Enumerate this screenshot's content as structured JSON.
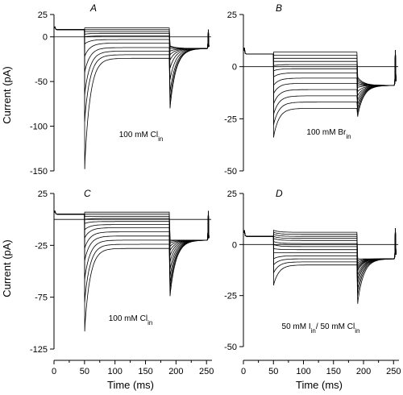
{
  "figure": {
    "x_axis_title": "Time (ms)",
    "y_axis_title": "Current (pA)"
  },
  "chart_data": [
    {
      "type": "line",
      "panel": "A",
      "condition": {
        "main": "100 mM Cl",
        "sub": "in"
      },
      "xlabel": "Time (ms)",
      "ylabel": "Current (pA)",
      "xlim": [
        0,
        255
      ],
      "ylim": [
        -150,
        25
      ],
      "xticks": [
        "0",
        "50",
        "100",
        "150",
        "200",
        "250"
      ],
      "yticks": [
        {
          "value": 25,
          "label": "25"
        },
        {
          "value": 0,
          "label": "0"
        },
        {
          "value": -50,
          "label": "-50"
        },
        {
          "value": -100,
          "label": "-100"
        },
        {
          "value": -150,
          "label": "-150"
        }
      ],
      "protocol": {
        "step_on_ms": 50,
        "step_off_ms": 190,
        "end_ms": 255
      },
      "pre_current": 8,
      "steady_currents": [
        10,
        8,
        6,
        4,
        1,
        -3,
        -7,
        -12,
        -16,
        -20,
        -24
      ],
      "onset_peaks": [
        10,
        8,
        6,
        3,
        0,
        -8,
        -22,
        -40,
        -65,
        -95,
        -148
      ],
      "tail_peaks": [
        -10,
        -11,
        -13,
        -16,
        -20,
        -26,
        -35,
        -48,
        -62,
        -72,
        -80
      ],
      "tail_steady": -13
    },
    {
      "type": "line",
      "panel": "B",
      "condition": {
        "main": "100 mM Br",
        "sub": "in"
      },
      "xlabel": "Time (ms)",
      "ylabel": "Current (pA)",
      "xlim": [
        0,
        255
      ],
      "ylim": [
        -50,
        25
      ],
      "xticks": [
        "0",
        "50",
        "100",
        "150",
        "200",
        "250"
      ],
      "yticks": [
        {
          "value": 25,
          "label": "25"
        },
        {
          "value": 0,
          "label": "0"
        },
        {
          "value": -25,
          "label": "-25"
        },
        {
          "value": -50,
          "label": "-50"
        }
      ],
      "protocol": {
        "step_on_ms": 50,
        "step_off_ms": 190,
        "end_ms": 255
      },
      "pre_current": 6,
      "steady_currents": [
        7,
        5.5,
        4,
        2.5,
        1,
        -1,
        -3,
        -5.5,
        -8,
        -11,
        -14,
        -17,
        -20
      ],
      "onset_peaks": [
        7,
        5.5,
        4,
        2.5,
        0.5,
        -2,
        -5,
        -9,
        -13,
        -18,
        -23,
        -28,
        -34
      ],
      "tail_peaks": [
        -5,
        -6,
        -7,
        -8,
        -9,
        -10,
        -12,
        -14,
        -16,
        -18,
        -20,
        -22,
        -24
      ],
      "tail_steady": -9
    },
    {
      "type": "line",
      "panel": "C",
      "condition": {
        "main": "100 mM Cl",
        "sub": "in"
      },
      "xlabel": "Time (ms)",
      "ylabel": "Current (pA)",
      "xlim": [
        0,
        255
      ],
      "ylim": [
        -125,
        25
      ],
      "xticks": [
        "0",
        "50",
        "100",
        "150",
        "200",
        "250"
      ],
      "yticks": [
        {
          "value": 25,
          "label": "25"
        },
        {
          "value": -25,
          "label": "-25"
        },
        {
          "value": -75,
          "label": "-75"
        },
        {
          "value": -125,
          "label": "-125"
        }
      ],
      "protocol": {
        "step_on_ms": 50,
        "step_off_ms": 190,
        "end_ms": 255
      },
      "pre_current": 5,
      "steady_currents": [
        7,
        5,
        3,
        1,
        -2,
        -5,
        -8,
        -12,
        -16,
        -20,
        -24,
        -28
      ],
      "onset_peaks": [
        7,
        5,
        3,
        0,
        -4,
        -10,
        -18,
        -28,
        -40,
        -58,
        -80,
        -108
      ],
      "tail_peaks": [
        -20,
        -21,
        -23,
        -26,
        -30,
        -35,
        -41,
        -48,
        -55,
        -62,
        -68,
        -74
      ],
      "tail_steady": -20
    },
    {
      "type": "line",
      "panel": "D",
      "condition": {
        "main": "50 mM I",
        "sub": "in",
        "main2": "/ 50 mM Cl",
        "sub2": "in"
      },
      "xlabel": "Time (ms)",
      "ylabel": "Current (pA)",
      "xlim": [
        0,
        255
      ],
      "ylim": [
        -50,
        25
      ],
      "xticks": [
        "0",
        "50",
        "100",
        "150",
        "200",
        "250"
      ],
      "yticks": [
        {
          "value": 25,
          "label": "25"
        },
        {
          "value": 0,
          "label": "0"
        },
        {
          "value": -25,
          "label": "-25"
        },
        {
          "value": -50,
          "label": "-50"
        }
      ],
      "protocol": {
        "step_on_ms": 50,
        "step_off_ms": 190,
        "end_ms": 255
      },
      "pre_current": 4,
      "steady_currents": [
        6,
        5,
        4,
        3,
        2,
        0.5,
        -1,
        -2.5,
        -4,
        -5.5,
        -7,
        -8.5,
        -10
      ],
      "onset_peaks": [
        7,
        6,
        5,
        4,
        3,
        1.5,
        0,
        -2,
        -4,
        -7,
        -10,
        -14,
        -20
      ],
      "tail_peaks": [
        -7,
        -8,
        -9,
        -10,
        -11,
        -12,
        -13,
        -15,
        -17,
        -19,
        -22,
        -25,
        -29
      ],
      "tail_steady": -7
    }
  ]
}
